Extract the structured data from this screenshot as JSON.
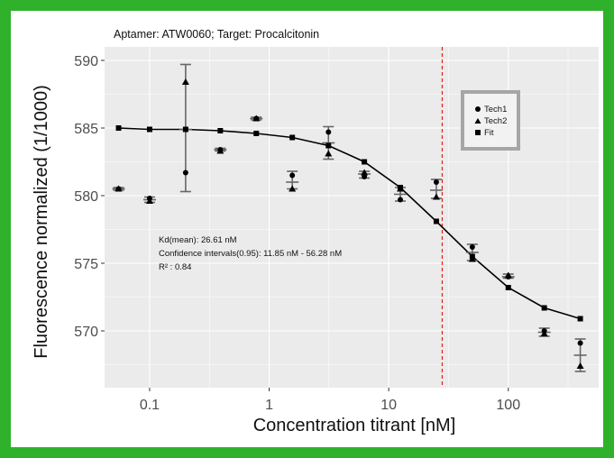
{
  "chart_data": {
    "type": "scatter",
    "title": "Aptamer: ATW0060; Target: Procalcitonin",
    "xlabel": "Concentration titrant [nM]",
    "ylabel": "Fluorescence normalized (1/1000)",
    "xscale": "log",
    "xlim": [
      0.042,
      570
    ],
    "ylim": [
      565.8,
      591
    ],
    "x_ticks": [
      0.1,
      1,
      10,
      100
    ],
    "x_tick_labels": [
      "0.1",
      "1",
      "10",
      "100"
    ],
    "y_ticks": [
      570,
      575,
      580,
      585,
      590
    ],
    "y_tick_labels": [
      "570",
      "575",
      "580",
      "585",
      "590"
    ],
    "grid": true,
    "legend_position": "top-right",
    "kd_line_x": 28,
    "kd_line_color": "#e0201b",
    "annotations": [
      "Kd(mean): 26.61 nM",
      "Confidence intervals(0.95): 11.85 nM - 56.28 nM",
      "R² : 0.84"
    ],
    "series": [
      {
        "name": "Tech1",
        "marker": "circle",
        "x": [
          0.055,
          0.1,
          0.2,
          0.39,
          0.78,
          1.56,
          3.13,
          6.25,
          12.5,
          25,
          50,
          100,
          200,
          400
        ],
        "y": [
          580.5,
          579.8,
          581.7,
          583.4,
          585.7,
          581.5,
          584.7,
          581.4,
          579.7,
          581.0,
          576.2,
          574.0,
          570.0,
          569.1
        ]
      },
      {
        "name": "Tech2",
        "marker": "triangle",
        "x": [
          0.055,
          0.1,
          0.2,
          0.39,
          0.78,
          1.56,
          3.13,
          6.25,
          12.5,
          25,
          50,
          100,
          200,
          400
        ],
        "y": [
          580.5,
          579.6,
          588.4,
          583.3,
          585.7,
          580.5,
          583.1,
          581.7,
          580.5,
          579.9,
          575.3,
          574.1,
          569.8,
          567.4
        ]
      },
      {
        "name": "Fit",
        "marker": "square",
        "x": [
          0.055,
          0.1,
          0.2,
          0.39,
          0.78,
          1.56,
          3.13,
          6.25,
          12.5,
          25,
          50,
          100,
          200,
          400
        ],
        "y": [
          585.0,
          584.9,
          584.9,
          584.8,
          584.6,
          584.3,
          583.7,
          582.5,
          580.6,
          578.1,
          575.5,
          573.2,
          571.7,
          570.9
        ]
      }
    ],
    "error_bars": [
      {
        "x": 0.055,
        "mean": 580.5,
        "low": 580.4,
        "high": 580.6
      },
      {
        "x": 0.1,
        "mean": 579.7,
        "low": 579.5,
        "high": 579.9
      },
      {
        "x": 0.2,
        "mean": 584.9,
        "low": 580.3,
        "high": 589.7
      },
      {
        "x": 0.39,
        "mean": 583.4,
        "low": 583.3,
        "high": 583.5
      },
      {
        "x": 0.78,
        "mean": 585.7,
        "low": 585.6,
        "high": 585.8
      },
      {
        "x": 1.56,
        "mean": 581.0,
        "low": 580.5,
        "high": 581.8
      },
      {
        "x": 3.13,
        "mean": 583.9,
        "low": 582.7,
        "high": 585.1
      },
      {
        "x": 6.25,
        "mean": 581.6,
        "low": 581.3,
        "high": 581.8
      },
      {
        "x": 12.5,
        "mean": 580.1,
        "low": 579.6,
        "high": 580.6
      },
      {
        "x": 25,
        "mean": 580.4,
        "low": 579.8,
        "high": 581.2
      },
      {
        "x": 50,
        "mean": 575.8,
        "low": 575.2,
        "high": 576.4
      },
      {
        "x": 100,
        "mean": 574.0,
        "low": 573.9,
        "high": 574.2
      },
      {
        "x": 200,
        "mean": 569.9,
        "low": 569.6,
        "high": 570.2
      },
      {
        "x": 400,
        "mean": 568.2,
        "low": 567.0,
        "high": 569.4
      }
    ]
  },
  "colors": {
    "border": "#2fb12b",
    "panel": "#ebebeb",
    "grid_major": "#ffffff",
    "marker": "#000000",
    "error_bar": "#666666",
    "legend_border": "#a6a6a6"
  }
}
